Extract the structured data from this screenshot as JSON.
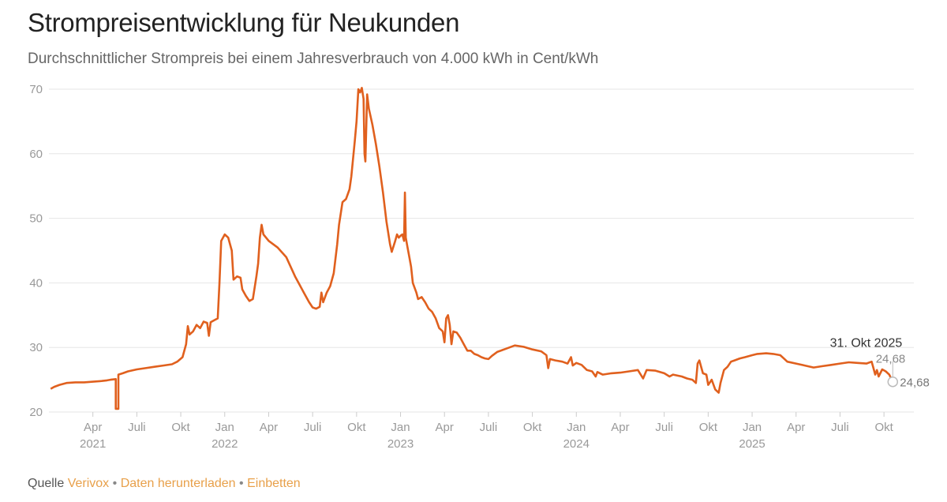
{
  "title": "Strompreisentwicklung für Neukunden",
  "subtitle": "Durchschnittlicher Strompreis bei einem Jahresverbrauch von 4.000 kWh in Cent/kWh",
  "footer": {
    "source_label": "Quelle",
    "source_link": "Verivox",
    "download_link": "Daten herunterladen",
    "embed_link": "Einbetten",
    "separator": "•"
  },
  "colors": {
    "line": "#e0601e",
    "grid": "#e6e6e6",
    "axis_text": "#999999",
    "link": "#e8a04a"
  },
  "chart_data": {
    "type": "line",
    "title": "Strompreisentwicklung für Neukunden",
    "ylabel": "Cent/kWh",
    "ylim": [
      20,
      70
    ],
    "yticks": [
      20,
      30,
      40,
      50,
      60,
      70
    ],
    "xlim": [
      2021.0,
      2025.92
    ],
    "xticks": [
      {
        "x": 2021.25,
        "label": "Apr",
        "year": "2021"
      },
      {
        "x": 2021.5,
        "label": "Juli",
        "year": ""
      },
      {
        "x": 2021.75,
        "label": "Okt",
        "year": ""
      },
      {
        "x": 2022.0,
        "label": "Jan",
        "year": "2022"
      },
      {
        "x": 2022.25,
        "label": "Apr",
        "year": ""
      },
      {
        "x": 2022.5,
        "label": "Juli",
        "year": ""
      },
      {
        "x": 2022.75,
        "label": "Okt",
        "year": ""
      },
      {
        "x": 2023.0,
        "label": "Jan",
        "year": "2023"
      },
      {
        "x": 2023.25,
        "label": "Apr",
        "year": ""
      },
      {
        "x": 2023.5,
        "label": "Juli",
        "year": ""
      },
      {
        "x": 2023.75,
        "label": "Okt",
        "year": ""
      },
      {
        "x": 2024.0,
        "label": "Jan",
        "year": "2024"
      },
      {
        "x": 2024.25,
        "label": "Apr",
        "year": ""
      },
      {
        "x": 2024.5,
        "label": "Juli",
        "year": ""
      },
      {
        "x": 2024.75,
        "label": "Okt",
        "year": ""
      },
      {
        "x": 2025.0,
        "label": "Jan",
        "year": "2025"
      },
      {
        "x": 2025.25,
        "label": "Apr",
        "year": ""
      },
      {
        "x": 2025.5,
        "label": "Juli",
        "year": ""
      },
      {
        "x": 2025.75,
        "label": "Okt",
        "year": ""
      }
    ],
    "series": [
      {
        "name": "Strompreis",
        "points": [
          [
            2021.01,
            23.6
          ],
          [
            2021.03,
            23.9
          ],
          [
            2021.06,
            24.2
          ],
          [
            2021.1,
            24.5
          ],
          [
            2021.15,
            24.6
          ],
          [
            2021.2,
            24.6
          ],
          [
            2021.25,
            24.7
          ],
          [
            2021.3,
            24.8
          ],
          [
            2021.33,
            24.9
          ],
          [
            2021.35,
            25.0
          ],
          [
            2021.38,
            25.1
          ],
          [
            2021.38,
            20.5
          ],
          [
            2021.395,
            20.5
          ],
          [
            2021.395,
            25.8
          ],
          [
            2021.42,
            26.0
          ],
          [
            2021.45,
            26.3
          ],
          [
            2021.5,
            26.6
          ],
          [
            2021.55,
            26.8
          ],
          [
            2021.6,
            27.0
          ],
          [
            2021.65,
            27.2
          ],
          [
            2021.7,
            27.4
          ],
          [
            2021.73,
            27.8
          ],
          [
            2021.76,
            28.5
          ],
          [
            2021.78,
            30.5
          ],
          [
            2021.79,
            33.3
          ],
          [
            2021.8,
            32.0
          ],
          [
            2021.82,
            32.5
          ],
          [
            2021.84,
            33.5
          ],
          [
            2021.86,
            33.0
          ],
          [
            2021.88,
            34.0
          ],
          [
            2021.9,
            33.8
          ],
          [
            2021.91,
            31.8
          ],
          [
            2021.92,
            33.9
          ],
          [
            2021.94,
            34.2
          ],
          [
            2021.96,
            34.5
          ],
          [
            2021.97,
            40.0
          ],
          [
            2021.98,
            46.5
          ],
          [
            2022.0,
            47.5
          ],
          [
            2022.02,
            47.0
          ],
          [
            2022.04,
            45.0
          ],
          [
            2022.05,
            40.5
          ],
          [
            2022.07,
            41.0
          ],
          [
            2022.09,
            40.8
          ],
          [
            2022.1,
            39.0
          ],
          [
            2022.12,
            38.0
          ],
          [
            2022.14,
            37.2
          ],
          [
            2022.16,
            37.5
          ],
          [
            2022.18,
            41.0
          ],
          [
            2022.19,
            43.0
          ],
          [
            2022.2,
            47.0
          ],
          [
            2022.21,
            49.0
          ],
          [
            2022.22,
            47.5
          ],
          [
            2022.25,
            46.5
          ],
          [
            2022.3,
            45.5
          ],
          [
            2022.35,
            44.0
          ],
          [
            2022.4,
            41.0
          ],
          [
            2022.45,
            38.5
          ],
          [
            2022.48,
            37.0
          ],
          [
            2022.5,
            36.2
          ],
          [
            2022.52,
            36.0
          ],
          [
            2022.54,
            36.3
          ],
          [
            2022.55,
            38.5
          ],
          [
            2022.56,
            37.0
          ],
          [
            2022.58,
            38.5
          ],
          [
            2022.6,
            39.5
          ],
          [
            2022.62,
            41.5
          ],
          [
            2022.64,
            46.0
          ],
          [
            2022.65,
            49.0
          ],
          [
            2022.67,
            52.5
          ],
          [
            2022.69,
            53.0
          ],
          [
            2022.71,
            54.5
          ],
          [
            2022.72,
            56.5
          ],
          [
            2022.74,
            62.0
          ],
          [
            2022.75,
            65.0
          ],
          [
            2022.76,
            70.0
          ],
          [
            2022.77,
            69.5
          ],
          [
            2022.78,
            70.2
          ],
          [
            2022.79,
            68.5
          ],
          [
            2022.795,
            60.0
          ],
          [
            2022.8,
            58.8
          ],
          [
            2022.81,
            69.2
          ],
          [
            2022.82,
            67.0
          ],
          [
            2022.84,
            64.5
          ],
          [
            2022.86,
            61.5
          ],
          [
            2022.88,
            58.0
          ],
          [
            2022.9,
            54.0
          ],
          [
            2022.92,
            49.5
          ],
          [
            2022.94,
            46.0
          ],
          [
            2022.95,
            44.8
          ],
          [
            2022.97,
            46.5
          ],
          [
            2022.98,
            47.5
          ],
          [
            2022.99,
            47.0
          ],
          [
            2023.0,
            47.3
          ],
          [
            2023.01,
            47.5
          ],
          [
            2023.02,
            46.5
          ],
          [
            2023.025,
            54.0
          ],
          [
            2023.03,
            47.0
          ],
          [
            2023.04,
            45.5
          ],
          [
            2023.05,
            44.0
          ],
          [
            2023.06,
            42.5
          ],
          [
            2023.07,
            40.0
          ],
          [
            2023.09,
            38.5
          ],
          [
            2023.1,
            37.5
          ],
          [
            2023.12,
            37.8
          ],
          [
            2023.14,
            37.0
          ],
          [
            2023.16,
            36.0
          ],
          [
            2023.18,
            35.5
          ],
          [
            2023.2,
            34.5
          ],
          [
            2023.22,
            33.0
          ],
          [
            2023.24,
            32.5
          ],
          [
            2023.25,
            30.8
          ],
          [
            2023.26,
            34.5
          ],
          [
            2023.27,
            35.0
          ],
          [
            2023.28,
            33.5
          ],
          [
            2023.29,
            30.5
          ],
          [
            2023.3,
            32.5
          ],
          [
            2023.32,
            32.3
          ],
          [
            2023.34,
            31.5
          ],
          [
            2023.36,
            30.5
          ],
          [
            2023.38,
            29.5
          ],
          [
            2023.4,
            29.5
          ],
          [
            2023.42,
            29.0
          ],
          [
            2023.44,
            28.8
          ],
          [
            2023.46,
            28.5
          ],
          [
            2023.48,
            28.3
          ],
          [
            2023.5,
            28.2
          ],
          [
            2023.52,
            28.7
          ],
          [
            2023.55,
            29.3
          ],
          [
            2023.6,
            29.8
          ],
          [
            2023.65,
            30.3
          ],
          [
            2023.7,
            30.1
          ],
          [
            2023.75,
            29.7
          ],
          [
            2023.8,
            29.4
          ],
          [
            2023.83,
            28.8
          ],
          [
            2023.84,
            26.8
          ],
          [
            2023.85,
            28.2
          ],
          [
            2023.88,
            28.0
          ],
          [
            2023.92,
            27.8
          ],
          [
            2023.95,
            27.5
          ],
          [
            2023.97,
            28.5
          ],
          [
            2023.98,
            27.2
          ],
          [
            2024.0,
            27.6
          ],
          [
            2024.03,
            27.3
          ],
          [
            2024.06,
            26.5
          ],
          [
            2024.09,
            26.3
          ],
          [
            2024.11,
            25.5
          ],
          [
            2024.12,
            26.2
          ],
          [
            2024.15,
            25.8
          ],
          [
            2024.2,
            26.0
          ],
          [
            2024.25,
            26.1
          ],
          [
            2024.3,
            26.3
          ],
          [
            2024.35,
            26.5
          ],
          [
            2024.38,
            25.2
          ],
          [
            2024.4,
            26.5
          ],
          [
            2024.45,
            26.4
          ],
          [
            2024.5,
            26.0
          ],
          [
            2024.53,
            25.5
          ],
          [
            2024.55,
            25.8
          ],
          [
            2024.6,
            25.5
          ],
          [
            2024.63,
            25.2
          ],
          [
            2024.66,
            25.0
          ],
          [
            2024.68,
            24.5
          ],
          [
            2024.69,
            27.5
          ],
          [
            2024.7,
            28.0
          ],
          [
            2024.72,
            26.0
          ],
          [
            2024.74,
            25.8
          ],
          [
            2024.75,
            24.2
          ],
          [
            2024.77,
            25.0
          ],
          [
            2024.79,
            23.5
          ],
          [
            2024.81,
            23.0
          ],
          [
            2024.82,
            24.5
          ],
          [
            2024.84,
            26.5
          ],
          [
            2024.86,
            27.0
          ],
          [
            2024.88,
            27.8
          ],
          [
            2024.9,
            28.0
          ],
          [
            2024.93,
            28.3
          ],
          [
            2024.96,
            28.5
          ],
          [
            2025.0,
            28.8
          ],
          [
            2025.03,
            29.0
          ],
          [
            2025.08,
            29.1
          ],
          [
            2025.12,
            29.0
          ],
          [
            2025.16,
            28.8
          ],
          [
            2025.18,
            28.3
          ],
          [
            2025.2,
            27.8
          ],
          [
            2025.25,
            27.5
          ],
          [
            2025.3,
            27.2
          ],
          [
            2025.35,
            26.9
          ],
          [
            2025.4,
            27.1
          ],
          [
            2025.45,
            27.3
          ],
          [
            2025.5,
            27.5
          ],
          [
            2025.55,
            27.7
          ],
          [
            2025.6,
            27.6
          ],
          [
            2025.65,
            27.5
          ],
          [
            2025.68,
            27.8
          ],
          [
            2025.69,
            26.8
          ],
          [
            2025.7,
            25.8
          ],
          [
            2025.71,
            26.5
          ],
          [
            2025.72,
            25.5
          ],
          [
            2025.74,
            26.6
          ],
          [
            2025.76,
            26.3
          ],
          [
            2025.78,
            25.8
          ],
          [
            2025.8,
            24.68
          ]
        ]
      }
    ],
    "annotation": {
      "date": "31. Okt 2025",
      "value": "24,68",
      "end_value": "24,68"
    }
  }
}
